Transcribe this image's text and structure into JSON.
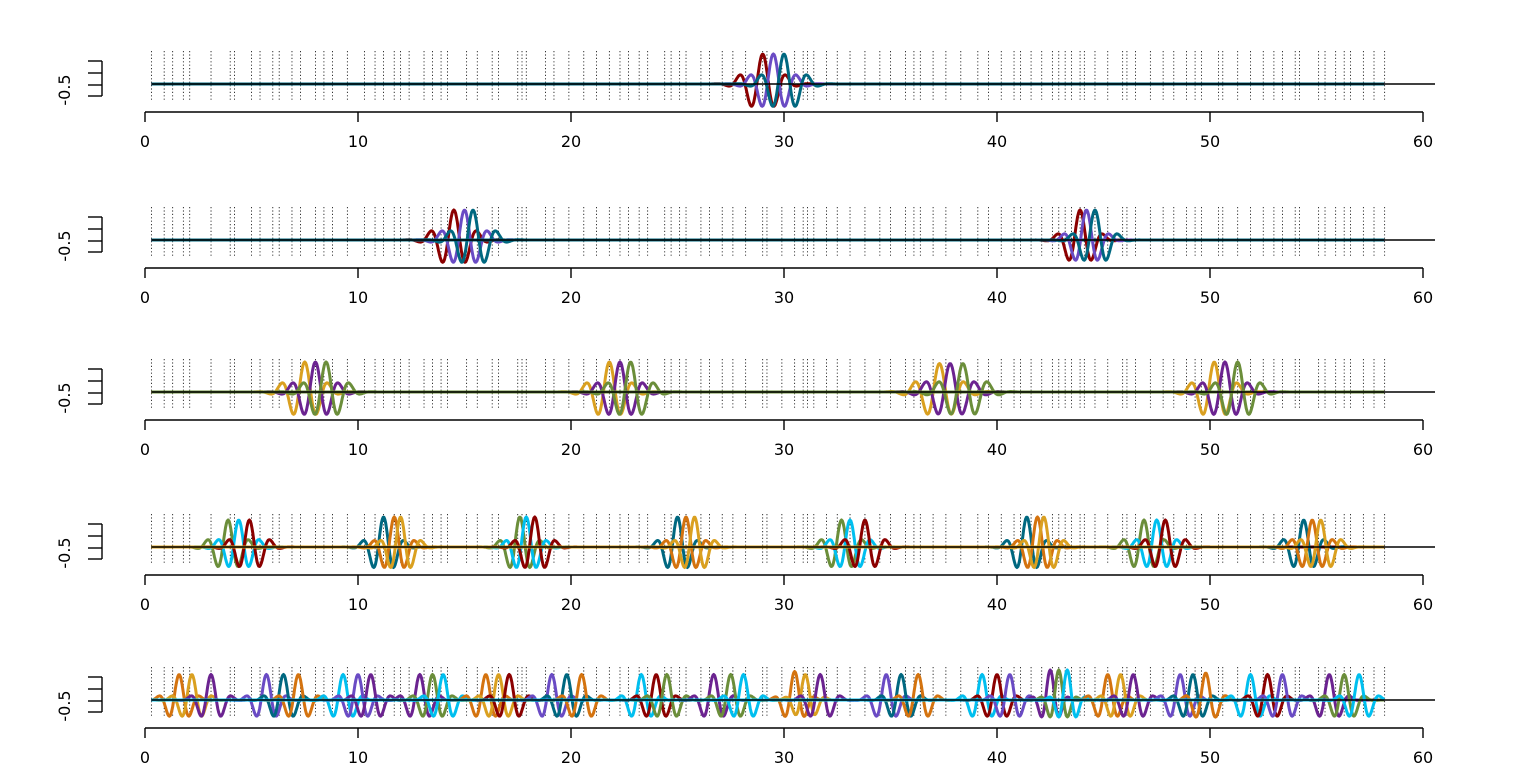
{
  "chart_data": [
    {
      "type": "line",
      "xlim": [
        0,
        60
      ],
      "ylim": [
        -0.5,
        1.0
      ],
      "xticks": [
        "0",
        "10",
        "20",
        "30",
        "40",
        "50",
        "60"
      ],
      "yticks": [
        "-0.5"
      ],
      "grid": false,
      "series": [
        {
          "color": "#8b0000",
          "center": 29.0,
          "amp": 1.0,
          "sigma": 0.7,
          "freq": 0.9
        },
        {
          "color": "#6a4bc4",
          "center": 29.5,
          "amp": 1.0,
          "sigma": 0.7,
          "freq": 0.9
        },
        {
          "color": "#006880",
          "center": 30.0,
          "amp": 1.0,
          "sigma": 0.7,
          "freq": 0.9
        }
      ]
    },
    {
      "type": "line",
      "xlim": [
        0,
        60
      ],
      "ylim": [
        -0.5,
        1.0
      ],
      "xticks": [
        "0",
        "10",
        "20",
        "30",
        "40",
        "50",
        "60"
      ],
      "yticks": [
        "-0.5"
      ],
      "grid": false,
      "series": [
        {
          "color": "#8b0000",
          "center": 14.5,
          "amp": 1.0,
          "sigma": 0.7,
          "freq": 0.9
        },
        {
          "color": "#6a4bc4",
          "center": 15.0,
          "amp": 1.0,
          "sigma": 0.7,
          "freq": 0.9
        },
        {
          "color": "#006880",
          "center": 15.4,
          "amp": 1.0,
          "sigma": 0.7,
          "freq": 0.9
        },
        {
          "color": "#8b0000",
          "center": 43.9,
          "amp": 1.0,
          "sigma": 0.6,
          "freq": 0.9
        },
        {
          "color": "#6a4bc4",
          "center": 44.2,
          "amp": 1.0,
          "sigma": 0.6,
          "freq": 0.9
        },
        {
          "color": "#006880",
          "center": 44.6,
          "amp": 1.0,
          "sigma": 0.6,
          "freq": 0.9
        }
      ]
    },
    {
      "type": "line",
      "xlim": [
        0,
        60
      ],
      "ylim": [
        -0.5,
        1.0
      ],
      "xticks": [
        "0",
        "10",
        "20",
        "30",
        "40",
        "50",
        "60"
      ],
      "yticks": [
        "-0.5"
      ],
      "grid": false,
      "series": [
        {
          "color": "#daa020",
          "center": 7.5,
          "amp": 1.0,
          "sigma": 0.7,
          "freq": 0.9
        },
        {
          "color": "#6b2390",
          "center": 8.0,
          "amp": 1.0,
          "sigma": 0.7,
          "freq": 0.9
        },
        {
          "color": "#6b8e3a",
          "center": 8.5,
          "amp": 1.0,
          "sigma": 0.7,
          "freq": 0.9
        },
        {
          "color": "#daa020",
          "center": 21.8,
          "amp": 1.0,
          "sigma": 0.7,
          "freq": 0.9
        },
        {
          "color": "#6b2390",
          "center": 22.3,
          "amp": 1.0,
          "sigma": 0.7,
          "freq": 0.9
        },
        {
          "color": "#6b8e3a",
          "center": 22.8,
          "amp": 1.0,
          "sigma": 0.7,
          "freq": 0.9
        },
        {
          "color": "#daa020",
          "center": 37.3,
          "amp": 0.95,
          "sigma": 0.8,
          "freq": 0.85
        },
        {
          "color": "#6b2390",
          "center": 37.8,
          "amp": 0.95,
          "sigma": 0.8,
          "freq": 0.85
        },
        {
          "color": "#6b8e3a",
          "center": 38.4,
          "amp": 0.95,
          "sigma": 0.8,
          "freq": 0.85
        },
        {
          "color": "#daa020",
          "center": 50.2,
          "amp": 1.0,
          "sigma": 0.7,
          "freq": 0.9
        },
        {
          "color": "#6b2390",
          "center": 50.7,
          "amp": 1.0,
          "sigma": 0.7,
          "freq": 0.9
        },
        {
          "color": "#6b8e3a",
          "center": 51.3,
          "amp": 1.0,
          "sigma": 0.7,
          "freq": 0.9
        }
      ]
    },
    {
      "type": "line",
      "xlim": [
        0,
        60
      ],
      "ylim": [
        -0.5,
        1.0
      ],
      "xticks": [
        "0",
        "10",
        "20",
        "30",
        "40",
        "50",
        "60"
      ],
      "yticks": [
        "-0.5"
      ],
      "grid": false,
      "series": [
        {
          "color": "#6b8e3a",
          "center": 3.9,
          "amp": 0.9,
          "sigma": 0.6,
          "freq": 1.0
        },
        {
          "color": "#00bfef",
          "center": 4.4,
          "amp": 0.9,
          "sigma": 0.6,
          "freq": 1.0
        },
        {
          "color": "#8b0000",
          "center": 4.9,
          "amp": 0.9,
          "sigma": 0.6,
          "freq": 1.0
        },
        {
          "color": "#006880",
          "center": 11.2,
          "amp": 1.0,
          "sigma": 0.55,
          "freq": 1.0
        },
        {
          "color": "#d4730f",
          "center": 11.7,
          "amp": 1.0,
          "sigma": 0.55,
          "freq": 1.0
        },
        {
          "color": "#daa020",
          "center": 12.0,
          "amp": 1.0,
          "sigma": 0.55,
          "freq": 1.0
        },
        {
          "color": "#6b8e3a",
          "center": 17.6,
          "amp": 1.0,
          "sigma": 0.55,
          "freq": 1.0
        },
        {
          "color": "#00bfef",
          "center": 17.9,
          "amp": 1.0,
          "sigma": 0.55,
          "freq": 1.0
        },
        {
          "color": "#8b0000",
          "center": 18.3,
          "amp": 1.0,
          "sigma": 0.55,
          "freq": 1.0
        },
        {
          "color": "#006880",
          "center": 25.0,
          "amp": 1.0,
          "sigma": 0.55,
          "freq": 1.0
        },
        {
          "color": "#d4730f",
          "center": 25.4,
          "amp": 1.0,
          "sigma": 0.55,
          "freq": 1.0
        },
        {
          "color": "#daa020",
          "center": 25.8,
          "amp": 1.0,
          "sigma": 0.55,
          "freq": 1.0
        },
        {
          "color": "#6b8e3a",
          "center": 32.7,
          "amp": 0.9,
          "sigma": 0.6,
          "freq": 1.0
        },
        {
          "color": "#00bfef",
          "center": 33.1,
          "amp": 0.9,
          "sigma": 0.6,
          "freq": 1.0
        },
        {
          "color": "#8b0000",
          "center": 33.8,
          "amp": 0.9,
          "sigma": 0.6,
          "freq": 1.0
        },
        {
          "color": "#006880",
          "center": 41.4,
          "amp": 1.0,
          "sigma": 0.55,
          "freq": 1.0
        },
        {
          "color": "#d4730f",
          "center": 41.9,
          "amp": 1.0,
          "sigma": 0.55,
          "freq": 1.0
        },
        {
          "color": "#daa020",
          "center": 42.2,
          "amp": 1.0,
          "sigma": 0.55,
          "freq": 1.0
        },
        {
          "color": "#6b8e3a",
          "center": 46.9,
          "amp": 0.9,
          "sigma": 0.6,
          "freq": 1.0
        },
        {
          "color": "#00bfef",
          "center": 47.5,
          "amp": 0.9,
          "sigma": 0.6,
          "freq": 1.0
        },
        {
          "color": "#8b0000",
          "center": 47.9,
          "amp": 0.9,
          "sigma": 0.6,
          "freq": 1.0
        },
        {
          "color": "#006880",
          "center": 54.4,
          "amp": 0.9,
          "sigma": 0.6,
          "freq": 1.0
        },
        {
          "color": "#d4730f",
          "center": 54.8,
          "amp": 0.9,
          "sigma": 0.6,
          "freq": 1.0
        },
        {
          "color": "#daa020",
          "center": 55.2,
          "amp": 0.9,
          "sigma": 0.6,
          "freq": 1.0
        }
      ]
    },
    {
      "type": "line",
      "xlim": [
        0,
        60
      ],
      "ylim": [
        -0.5,
        1.0
      ],
      "xticks": [
        "0",
        "10",
        "20",
        "30",
        "40",
        "50",
        "60"
      ],
      "yticks": [
        "-0.5"
      ],
      "grid": false,
      "series": [
        {
          "color": "#d4730f",
          "center": 1.6,
          "amp": 0.85,
          "sigma": 0.5,
          "freq": 1.0
        },
        {
          "color": "#daa020",
          "center": 2.2,
          "amp": 0.85,
          "sigma": 0.5,
          "freq": 1.0
        },
        {
          "color": "#6b2390",
          "center": 3.1,
          "amp": 0.85,
          "sigma": 0.5,
          "freq": 1.0
        },
        {
          "color": "#6a4bc4",
          "center": 5.7,
          "amp": 0.85,
          "sigma": 0.5,
          "freq": 1.0
        },
        {
          "color": "#006880",
          "center": 6.5,
          "amp": 0.85,
          "sigma": 0.5,
          "freq": 1.0
        },
        {
          "color": "#d4730f",
          "center": 7.2,
          "amp": 0.85,
          "sigma": 0.5,
          "freq": 1.0
        },
        {
          "color": "#00bfef",
          "center": 9.3,
          "amp": 0.85,
          "sigma": 0.5,
          "freq": 1.0
        },
        {
          "color": "#6a4bc4",
          "center": 10.0,
          "amp": 0.85,
          "sigma": 0.5,
          "freq": 1.0
        },
        {
          "color": "#6b2390",
          "center": 10.6,
          "amp": 0.85,
          "sigma": 0.5,
          "freq": 1.0
        },
        {
          "color": "#6b2390",
          "center": 12.9,
          "amp": 0.85,
          "sigma": 0.5,
          "freq": 1.0
        },
        {
          "color": "#6b8e3a",
          "center": 13.5,
          "amp": 0.85,
          "sigma": 0.5,
          "freq": 1.0
        },
        {
          "color": "#00bfef",
          "center": 14.0,
          "amp": 0.85,
          "sigma": 0.5,
          "freq": 1.0
        },
        {
          "color": "#d4730f",
          "center": 16.0,
          "amp": 0.85,
          "sigma": 0.5,
          "freq": 1.0
        },
        {
          "color": "#daa020",
          "center": 16.6,
          "amp": 0.85,
          "sigma": 0.5,
          "freq": 1.0
        },
        {
          "color": "#8b0000",
          "center": 17.1,
          "amp": 0.85,
          "sigma": 0.5,
          "freq": 1.0
        },
        {
          "color": "#6a4bc4",
          "center": 19.1,
          "amp": 0.85,
          "sigma": 0.5,
          "freq": 1.0
        },
        {
          "color": "#006880",
          "center": 19.8,
          "amp": 0.85,
          "sigma": 0.5,
          "freq": 1.0
        },
        {
          "color": "#d4730f",
          "center": 20.5,
          "amp": 0.85,
          "sigma": 0.5,
          "freq": 1.0
        },
        {
          "color": "#00bfef",
          "center": 23.3,
          "amp": 0.85,
          "sigma": 0.5,
          "freq": 1.0
        },
        {
          "color": "#8b0000",
          "center": 24.0,
          "amp": 0.85,
          "sigma": 0.5,
          "freq": 1.0
        },
        {
          "color": "#6b8e3a",
          "center": 24.5,
          "amp": 0.85,
          "sigma": 0.5,
          "freq": 1.0
        },
        {
          "color": "#6b2390",
          "center": 26.7,
          "amp": 0.85,
          "sigma": 0.5,
          "freq": 1.0
        },
        {
          "color": "#6b8e3a",
          "center": 27.5,
          "amp": 0.85,
          "sigma": 0.5,
          "freq": 1.0
        },
        {
          "color": "#00bfef",
          "center": 28.1,
          "amp": 0.85,
          "sigma": 0.5,
          "freq": 1.0
        },
        {
          "color": "#d4730f",
          "center": 30.5,
          "amp": 0.95,
          "sigma": 0.45,
          "freq": 1.0
        },
        {
          "color": "#daa020",
          "center": 31.0,
          "amp": 0.85,
          "sigma": 0.45,
          "freq": 1.0
        },
        {
          "color": "#6b2390",
          "center": 31.7,
          "amp": 0.85,
          "sigma": 0.5,
          "freq": 1.0
        },
        {
          "color": "#6a4bc4",
          "center": 34.8,
          "amp": 0.85,
          "sigma": 0.5,
          "freq": 1.0
        },
        {
          "color": "#006880",
          "center": 35.5,
          "amp": 0.85,
          "sigma": 0.5,
          "freq": 1.0
        },
        {
          "color": "#d4730f",
          "center": 36.3,
          "amp": 0.85,
          "sigma": 0.5,
          "freq": 1.0
        },
        {
          "color": "#00bfef",
          "center": 39.3,
          "amp": 0.85,
          "sigma": 0.5,
          "freq": 1.0
        },
        {
          "color": "#8b0000",
          "center": 40.0,
          "amp": 0.85,
          "sigma": 0.5,
          "freq": 1.0
        },
        {
          "color": "#6a4bc4",
          "center": 40.6,
          "amp": 0.85,
          "sigma": 0.5,
          "freq": 1.0
        },
        {
          "color": "#6b2390",
          "center": 42.5,
          "amp": 1.0,
          "sigma": 0.4,
          "freq": 1.1
        },
        {
          "color": "#6b8e3a",
          "center": 42.9,
          "amp": 1.0,
          "sigma": 0.4,
          "freq": 1.1
        },
        {
          "color": "#00bfef",
          "center": 43.3,
          "amp": 1.0,
          "sigma": 0.4,
          "freq": 1.1
        },
        {
          "color": "#d4730f",
          "center": 45.2,
          "amp": 0.85,
          "sigma": 0.5,
          "freq": 1.0
        },
        {
          "color": "#daa020",
          "center": 45.8,
          "amp": 0.85,
          "sigma": 0.5,
          "freq": 1.0
        },
        {
          "color": "#6b2390",
          "center": 46.4,
          "amp": 0.85,
          "sigma": 0.5,
          "freq": 1.0
        },
        {
          "color": "#6a4bc4",
          "center": 48.6,
          "amp": 0.85,
          "sigma": 0.5,
          "freq": 1.0
        },
        {
          "color": "#006880",
          "center": 49.2,
          "amp": 0.85,
          "sigma": 0.5,
          "freq": 1.0
        },
        {
          "color": "#d4730f",
          "center": 49.8,
          "amp": 0.9,
          "sigma": 0.5,
          "freq": 1.0
        },
        {
          "color": "#00bfef",
          "center": 51.9,
          "amp": 0.85,
          "sigma": 0.5,
          "freq": 1.0
        },
        {
          "color": "#8b0000",
          "center": 52.7,
          "amp": 0.85,
          "sigma": 0.5,
          "freq": 1.0
        },
        {
          "color": "#6a4bc4",
          "center": 53.4,
          "amp": 0.85,
          "sigma": 0.5,
          "freq": 1.0
        },
        {
          "color": "#6b2390",
          "center": 55.6,
          "amp": 0.85,
          "sigma": 0.5,
          "freq": 1.0
        },
        {
          "color": "#6b8e3a",
          "center": 56.3,
          "amp": 0.85,
          "sigma": 0.5,
          "freq": 1.0
        },
        {
          "color": "#00bfef",
          "center": 57.0,
          "amp": 0.85,
          "sigma": 0.5,
          "freq": 1.0
        }
      ]
    }
  ],
  "knots": [
    0.3,
    0.9,
    1.3,
    1.8,
    2.1,
    3.1,
    4.0,
    4.2,
    5.0,
    5.4,
    6.0,
    6.3,
    6.9,
    7.3,
    8.0,
    8.4,
    8.8,
    9.5,
    10.3,
    10.8,
    11.2,
    11.7,
    12.0,
    12.4,
    13.1,
    13.5,
    13.9,
    14.2,
    15.1,
    15.6,
    16.3,
    16.6,
    17.5,
    17.7,
    17.9,
    18.8,
    19.2,
    19.9,
    20.6,
    21.2,
    21.8,
    22.3,
    22.7,
    23.2,
    23.6,
    24.4,
    24.7,
    25.1,
    25.4,
    26.1,
    26.5,
    27.1,
    27.6,
    28.2,
    29.0,
    29.2,
    29.9,
    30.5,
    30.9,
    31.1,
    31.4,
    32.0,
    32.5,
    33.1,
    33.8,
    34.5,
    35.0,
    35.7,
    36.1,
    36.4,
    37.0,
    37.6,
    38.3,
    39.1,
    39.6,
    40.2,
    40.8,
    41.1,
    41.6,
    42.1,
    42.6,
    42.9,
    43.2,
    43.5,
    43.9,
    44.1,
    44.6,
    45.2,
    45.9,
    46.1,
    46.5,
    47.2,
    47.8,
    48.3,
    48.9,
    49.3,
    49.6,
    50.4,
    50.6,
    51.3,
    51.9,
    52.5,
    53.0,
    53.4,
    54.0,
    54.2,
    55.1,
    55.4,
    55.9,
    56.3,
    56.6,
    57.2,
    57.7,
    58.2
  ]
}
